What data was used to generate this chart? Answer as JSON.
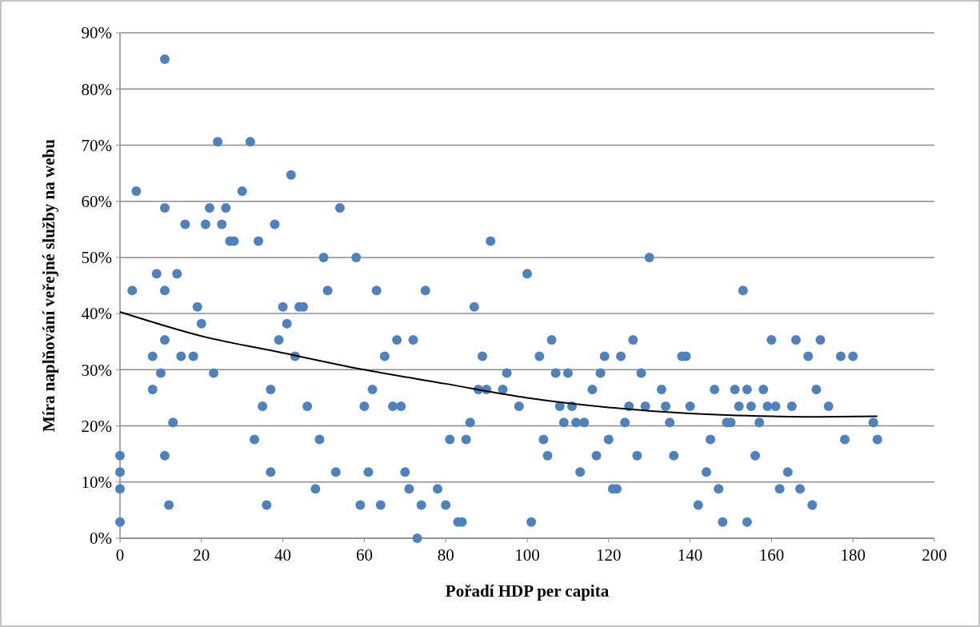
{
  "chart_data": {
    "type": "scatter",
    "xlabel": "Pořadí HDP per capita",
    "ylabel": "Míra naplňování veřejné služby na webu",
    "xlim": [
      0,
      200
    ],
    "xticks": [
      0,
      20,
      40,
      60,
      80,
      100,
      120,
      140,
      160,
      180,
      200
    ],
    "ylim": [
      0,
      90
    ],
    "yticks": [
      {
        "value": 0,
        "label": "0%"
      },
      {
        "value": 10,
        "label": "10%"
      },
      {
        "value": 20,
        "label": "20%"
      },
      {
        "value": 30,
        "label": "30%"
      },
      {
        "value": 40,
        "label": "40%"
      },
      {
        "value": 50,
        "label": "50%"
      },
      {
        "value": 60,
        "label": "60%"
      },
      {
        "value": 70,
        "label": "70%"
      },
      {
        "value": 80,
        "label": "80%"
      },
      {
        "value": 90,
        "label": "90%"
      }
    ],
    "grid": "y",
    "series": [
      {
        "color": "#4f81bd",
        "marker": "circle",
        "x": [
          0,
          0,
          0,
          0,
          3,
          4,
          11,
          8,
          8,
          9,
          10,
          11,
          11,
          11,
          11,
          12,
          13,
          14,
          15,
          16,
          18,
          19,
          20,
          21,
          22,
          23,
          24,
          25,
          26,
          27,
          28,
          30,
          32,
          33,
          34,
          35,
          36,
          37,
          37,
          38,
          39,
          40,
          41,
          42,
          43,
          44,
          45,
          46,
          48,
          49,
          50,
          51,
          53,
          54,
          58,
          59,
          60,
          61,
          62,
          63,
          64,
          65,
          67,
          68,
          69,
          70,
          71,
          72,
          73,
          74,
          75,
          78,
          80,
          81,
          83,
          84,
          85,
          86,
          87,
          88,
          89,
          90,
          91,
          94,
          95,
          98,
          100,
          101,
          103,
          104,
          105,
          106,
          107,
          108,
          109,
          110,
          111,
          112,
          113,
          114,
          116,
          117,
          118,
          119,
          120,
          121,
          122,
          123,
          124,
          125,
          126,
          127,
          128,
          129,
          130,
          133,
          134,
          135,
          136,
          138,
          139,
          140,
          142,
          144,
          145,
          146,
          147,
          148,
          149,
          150,
          151,
          152,
          153,
          154,
          154,
          155,
          156,
          157,
          158,
          159,
          160,
          161,
          162,
          164,
          165,
          166,
          167,
          169,
          170,
          171,
          172,
          174,
          177,
          178,
          180,
          185,
          186
        ],
        "values": [
          14.7,
          11.8,
          8.8,
          2.9,
          44.1,
          61.8,
          85.3,
          32.4,
          26.5,
          47.1,
          29.4,
          58.8,
          44.1,
          35.3,
          14.7,
          5.9,
          20.6,
          47.1,
          32.4,
          55.9,
          32.4,
          41.2,
          38.2,
          55.9,
          58.8,
          29.4,
          70.6,
          55.9,
          58.8,
          52.9,
          52.9,
          61.8,
          70.6,
          17.6,
          52.9,
          23.5,
          5.9,
          26.5,
          11.8,
          55.9,
          35.3,
          41.2,
          38.2,
          64.7,
          32.4,
          41.2,
          41.2,
          23.5,
          8.8,
          17.6,
          50,
          44.1,
          11.8,
          58.8,
          50,
          5.9,
          23.5,
          11.8,
          26.5,
          44.1,
          5.9,
          32.4,
          23.5,
          35.3,
          23.5,
          11.8,
          8.8,
          35.3,
          0,
          5.9,
          44.1,
          8.8,
          5.9,
          17.6,
          2.9,
          2.9,
          17.6,
          20.6,
          41.2,
          26.5,
          32.4,
          26.5,
          52.9,
          26.5,
          29.4,
          23.5,
          47.1,
          2.9,
          32.4,
          17.6,
          14.7,
          35.3,
          29.4,
          23.5,
          20.6,
          29.4,
          23.5,
          20.6,
          11.8,
          20.6,
          26.5,
          14.7,
          29.4,
          32.4,
          17.6,
          8.8,
          8.8,
          32.4,
          20.6,
          23.5,
          35.3,
          14.7,
          29.4,
          23.5,
          50,
          26.5,
          23.5,
          20.6,
          14.7,
          32.4,
          32.4,
          23.5,
          5.9,
          11.8,
          17.6,
          26.5,
          8.8,
          2.9,
          20.6,
          20.6,
          26.5,
          23.5,
          44.1,
          26.5,
          2.9,
          23.5,
          14.7,
          20.6,
          26.5,
          23.5,
          35.3,
          23.5,
          8.8,
          11.8,
          23.5,
          35.3,
          8.8,
          32.4,
          5.9,
          26.5,
          35.3,
          23.5,
          32.4,
          17.6,
          32.4,
          20.6,
          17.6
        ]
      },
      {
        "type": "line",
        "color": "#000000",
        "line_style": "solid",
        "x": [
          0,
          20,
          40,
          60,
          80,
          100,
          120,
          140,
          160,
          170,
          186
        ],
        "values": [
          40.3,
          36,
          33,
          30,
          27.5,
          25,
          23.3,
          22.2,
          21.7,
          21.6,
          21.7
        ]
      }
    ]
  }
}
